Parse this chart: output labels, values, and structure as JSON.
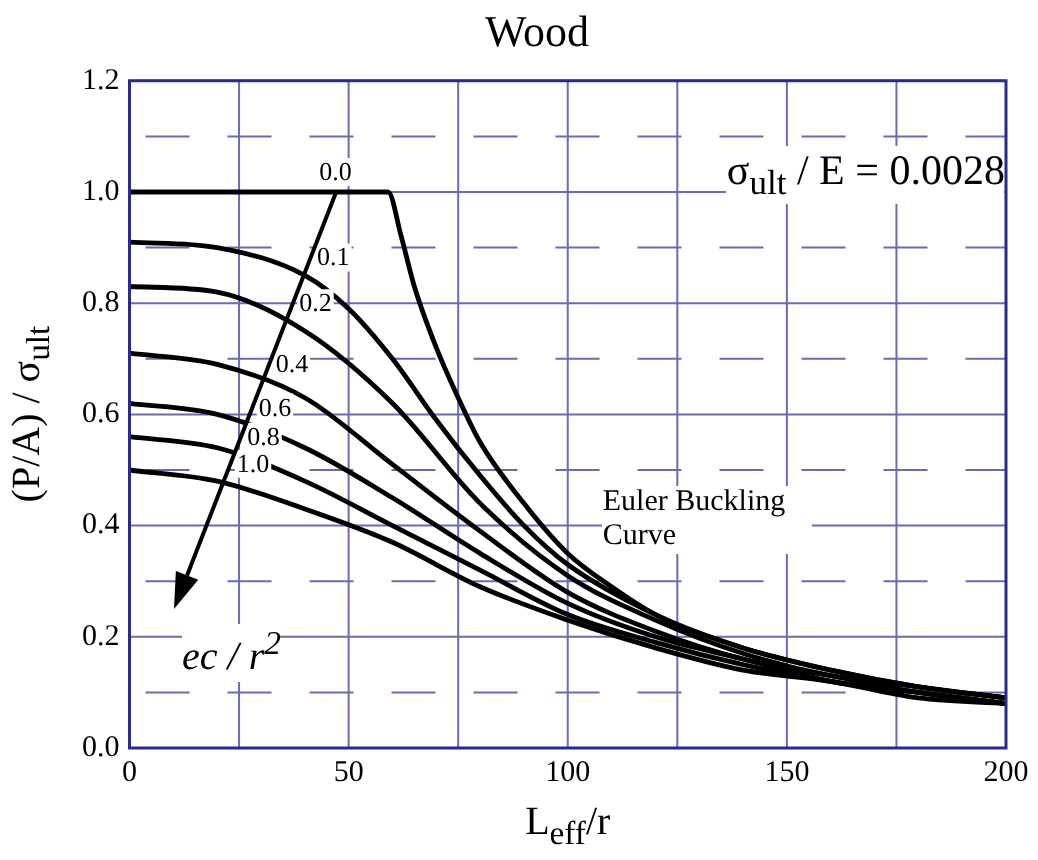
{
  "chart_data": {
    "type": "line",
    "title": "Wood",
    "xlabel": "L$_{eff}$/r",
    "ylabel": "(P/A) / σ$_{ult}$",
    "xlim": [
      0,
      200
    ],
    "xticks": [
      0,
      {
        "value": 25,
        "label": null
      },
      50,
      {
        "value": 75,
        "label": null
      },
      100,
      {
        "value": 125,
        "label": null
      },
      150,
      {
        "value": 175,
        "label": null
      },
      200
    ],
    "ylim": [
      0,
      1.2
    ],
    "yticks": [
      {
        "value": 0,
        "label": "0.0"
      },
      {
        "value": 0.1,
        "label": null
      },
      {
        "value": 0.2,
        "label": "0.2"
      },
      {
        "value": 0.3,
        "label": null
      },
      {
        "value": 0.4,
        "label": "0.4"
      },
      {
        "value": 0.5,
        "label": null
      },
      {
        "value": 0.6,
        "label": "0.6"
      },
      {
        "value": 0.7,
        "label": null
      },
      {
        "value": 0.8,
        "label": "0.8"
      },
      {
        "value": 0.9,
        "label": null
      },
      {
        "value": 1.0,
        "label": "1.0"
      },
      {
        "value": 1.1,
        "label": null
      },
      {
        "value": 1.2,
        "label": "1.2"
      }
    ],
    "grid": true,
    "legend": false,
    "marker": "none",
    "line_style": "solid",
    "annotations": [
      "σ$_{ult}$ / E = 0.0028",
      "Euler Buckling Curve",
      "ec / r$^{2}$"
    ],
    "series": [
      {
        "name": "0.0",
        "color": "#000000",
        "x": [
          0,
          59,
          62,
          65,
          70,
          75,
          80,
          90,
          100,
          110,
          120,
          140,
          160,
          180,
          200
        ],
        "values": [
          1.0,
          1.0,
          0.92,
          0.83,
          0.72,
          0.63,
          0.55,
          0.44,
          0.35,
          0.29,
          0.24,
          0.18,
          0.14,
          0.11,
          0.09
        ]
      },
      {
        "name": "0.1",
        "color": "#000000",
        "x": [
          0,
          20,
          40,
          50,
          60,
          70,
          80,
          90,
          100,
          120,
          140,
          160,
          180,
          200
        ],
        "values": [
          0.91,
          0.9,
          0.85,
          0.79,
          0.7,
          0.59,
          0.49,
          0.4,
          0.33,
          0.24,
          0.18,
          0.14,
          0.11,
          0.09
        ]
      },
      {
        "name": "0.2",
        "color": "#000000",
        "x": [
          0,
          20,
          40,
          60,
          80,
          100,
          120,
          140,
          160,
          180,
          200
        ],
        "values": [
          0.83,
          0.82,
          0.75,
          0.62,
          0.44,
          0.31,
          0.23,
          0.17,
          0.13,
          0.11,
          0.09
        ]
      },
      {
        "name": "0.4",
        "color": "#000000",
        "x": [
          0,
          20,
          40,
          60,
          80,
          100,
          120,
          140,
          160,
          180,
          200
        ],
        "values": [
          0.71,
          0.69,
          0.63,
          0.51,
          0.39,
          0.28,
          0.21,
          0.16,
          0.13,
          0.1,
          0.08
        ]
      },
      {
        "name": "0.6",
        "color": "#000000",
        "x": [
          0,
          20,
          40,
          60,
          80,
          100,
          120,
          140,
          160,
          180,
          200
        ],
        "values": [
          0.62,
          0.6,
          0.54,
          0.45,
          0.35,
          0.26,
          0.2,
          0.16,
          0.12,
          0.1,
          0.08
        ]
      },
      {
        "name": "0.8",
        "color": "#000000",
        "x": [
          0,
          20,
          40,
          60,
          80,
          100,
          120,
          140,
          160,
          180,
          200
        ],
        "values": [
          0.56,
          0.54,
          0.48,
          0.4,
          0.32,
          0.24,
          0.19,
          0.15,
          0.12,
          0.1,
          0.08
        ]
      },
      {
        "name": "1.0",
        "color": "#000000",
        "x": [
          0,
          20,
          40,
          60,
          80,
          100,
          120,
          140,
          160,
          180,
          200
        ],
        "values": [
          0.5,
          0.48,
          0.43,
          0.37,
          0.29,
          0.23,
          0.18,
          0.14,
          0.12,
          0.09,
          0.08
        ]
      }
    ]
  }
}
